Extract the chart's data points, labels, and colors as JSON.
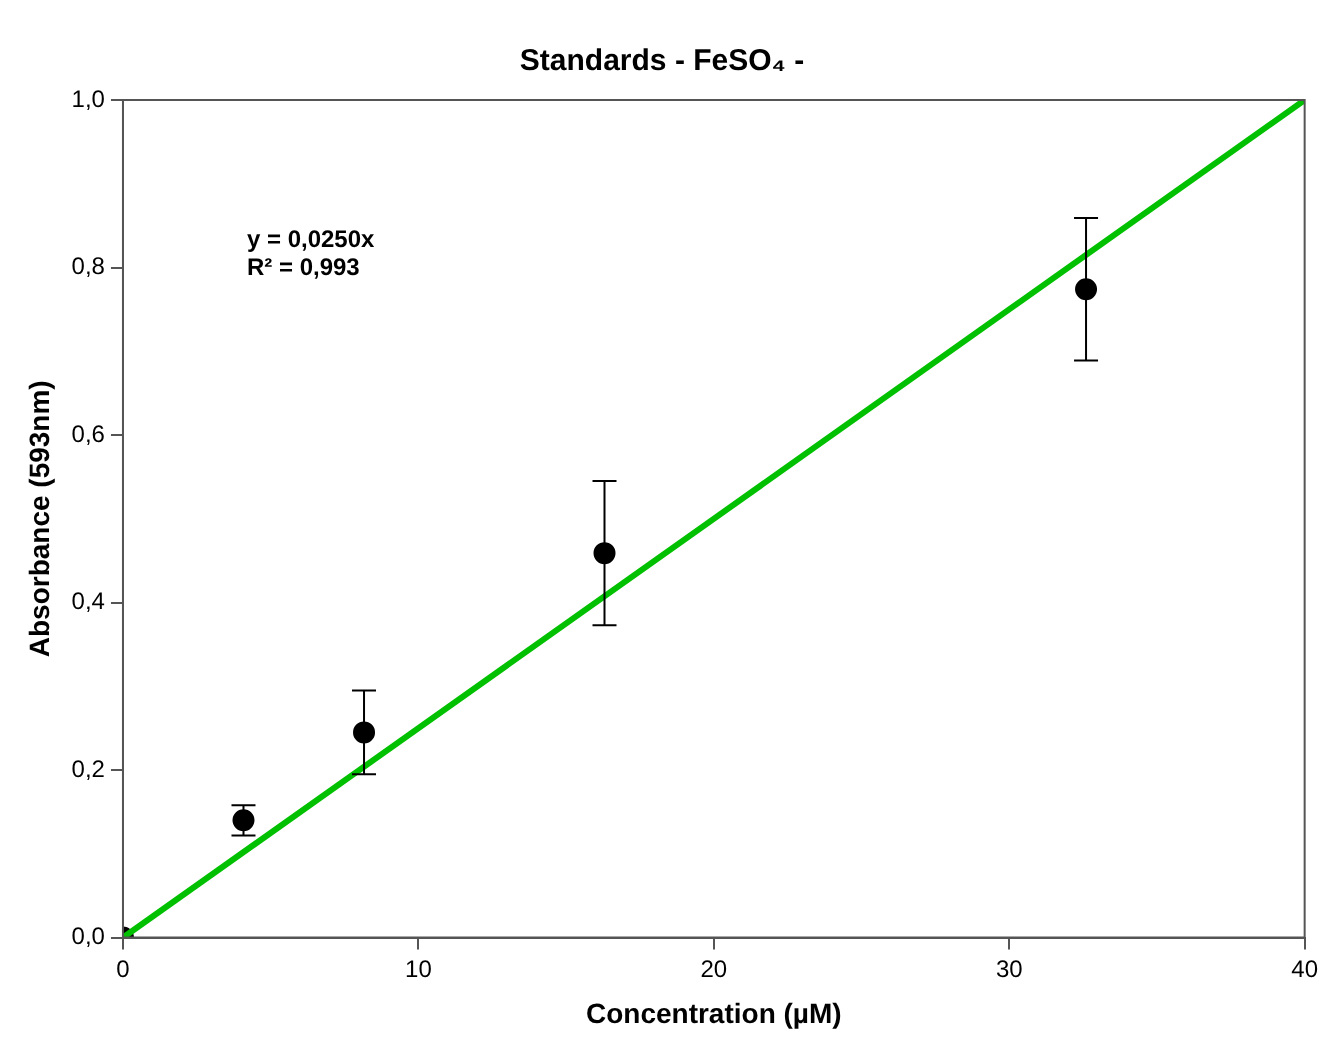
{
  "chart_data": {
    "type": "scatter",
    "title": "Standards - FeSO₄ -",
    "xlabel": "Concentration (µM)",
    "ylabel": "Absorbance (593nm)",
    "annotations": [
      "y = 0,0250x",
      "R² = 0,993"
    ],
    "series": [
      {
        "type": "scatter",
        "color": "#000000",
        "x": [
          0,
          4.08,
          8.16,
          16.3,
          32.6
        ],
        "values": [
          0,
          0.14,
          0.245,
          0.459,
          0.774
        ],
        "errors": [
          null,
          0.018,
          0.05,
          0.086,
          0.085
        ],
        "marker": "circle"
      },
      {
        "type": "line",
        "color": "#00c000",
        "x": [
          0,
          40
        ],
        "values": [
          0,
          1
        ],
        "marker": "none",
        "line_style": "solid"
      }
    ],
    "xlim": [
      0,
      40
    ],
    "xticks": [
      0,
      10,
      20,
      30,
      40
    ],
    "ylim": [
      0,
      1
    ],
    "yticks": [
      {
        "value": 0,
        "label": "0,0"
      },
      {
        "value": 0.2,
        "label": "0,2"
      },
      {
        "value": 0.4,
        "label": "0,4"
      },
      {
        "value": 0.6,
        "label": "0,6"
      },
      {
        "value": 0.8,
        "label": "0,8"
      },
      {
        "value": 1,
        "label": "1,0"
      }
    ],
    "grid": false,
    "legend": false
  }
}
